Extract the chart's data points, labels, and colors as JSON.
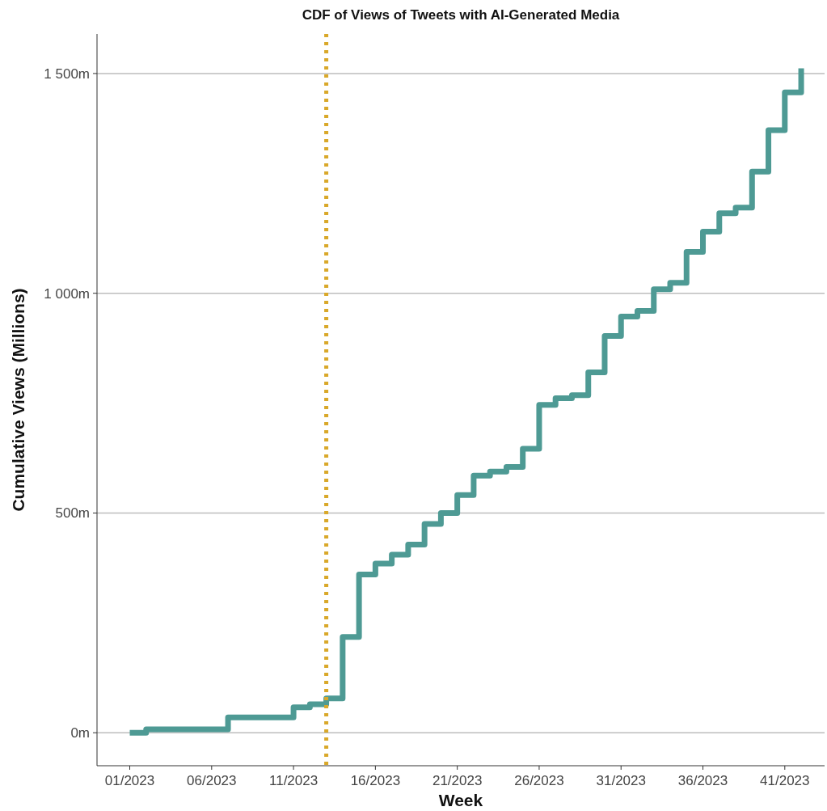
{
  "chart_data": {
    "type": "step",
    "title": "CDF of Views of Tweets with AI-Generated Media",
    "xlabel": "Week",
    "ylabel": "Cumulative Views (Millions)",
    "x": [
      "2023-01-02",
      "2023-01-09",
      "2023-01-16",
      "2023-01-23",
      "2023-01-30",
      "2023-02-06",
      "2023-02-13",
      "2023-02-20",
      "2023-02-27",
      "2023-03-06",
      "2023-03-13",
      "2023-03-20",
      "2023-03-27",
      "2023-04-03",
      "2023-04-10",
      "2023-04-17",
      "2023-04-24",
      "2023-05-01",
      "2023-05-08",
      "2023-05-15",
      "2023-05-22",
      "2023-05-29",
      "2023-06-05",
      "2023-06-12",
      "2023-06-19",
      "2023-06-26",
      "2023-07-03",
      "2023-07-10",
      "2023-07-17",
      "2023-07-24",
      "2023-07-31",
      "2023-08-07",
      "2023-08-14",
      "2023-08-21",
      "2023-08-28",
      "2023-09-04",
      "2023-09-11",
      "2023-09-18",
      "2023-09-25",
      "2023-10-02",
      "2023-10-09",
      "2023-10-16"
    ],
    "series": [
      {
        "color": "#4e9a94",
        "values": [
          0,
          8,
          8,
          8,
          8,
          8,
          35,
          35,
          35,
          35,
          58,
          65,
          78,
          218,
          360,
          385,
          405,
          428,
          475,
          500,
          541,
          585,
          594,
          605,
          646,
          746,
          761,
          768,
          820,
          903,
          947,
          960,
          1009,
          1024,
          1094,
          1140,
          1182,
          1195,
          1277,
          1371,
          1457,
          1512
        ]
      }
    ],
    "xlim": [
      "2022-12-19",
      "2023-10-26"
    ],
    "xticks": [
      {
        "value": "2023-01-02",
        "label": "01/2023"
      },
      {
        "value": "2023-02-06",
        "label": "06/2023"
      },
      {
        "value": "2023-03-13",
        "label": "11/2023"
      },
      {
        "value": "2023-04-17",
        "label": "16/2023"
      },
      {
        "value": "2023-05-22",
        "label": "21/2023"
      },
      {
        "value": "2023-06-26",
        "label": "26/2023"
      },
      {
        "value": "2023-07-31",
        "label": "31/2023"
      },
      {
        "value": "2023-09-04",
        "label": "36/2023"
      },
      {
        "value": "2023-10-09",
        "label": "41/2023"
      }
    ],
    "ylim": [
      -75,
      1590
    ],
    "yticks": [
      {
        "value": 0,
        "label": "0m"
      },
      {
        "value": 500,
        "label": "500m"
      },
      {
        "value": 1000,
        "label": "1 000m"
      },
      {
        "value": 1500,
        "label": "1 500m"
      }
    ],
    "grid": "y",
    "line_style": "solid",
    "ref_lines": [
      {
        "axis": "x",
        "value": "2023-03-27",
        "color": "#d9a82a",
        "line_style": "dotted"
      }
    ]
  }
}
